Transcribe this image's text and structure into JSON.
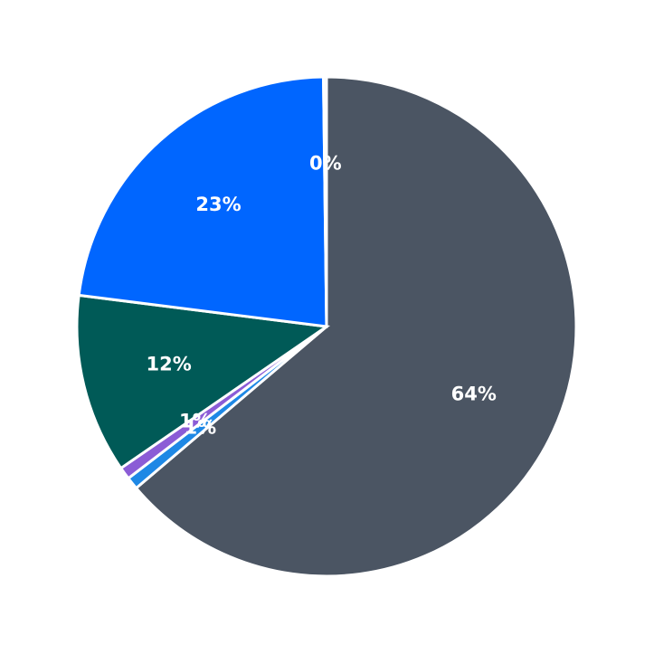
{
  "chart_data": {
    "type": "pie",
    "values": [
      63.8,
      0.8,
      0.8,
      11.6,
      22.8,
      0.2
    ],
    "value_labels": [
      "64%",
      "1%",
      "1%",
      "12%",
      "23%",
      "0%"
    ],
    "colors": [
      "#4b5563",
      "#1e88e5",
      "#8b5cd6",
      "#005a57",
      "#0066ff",
      "#f2f2f2"
    ]
  }
}
